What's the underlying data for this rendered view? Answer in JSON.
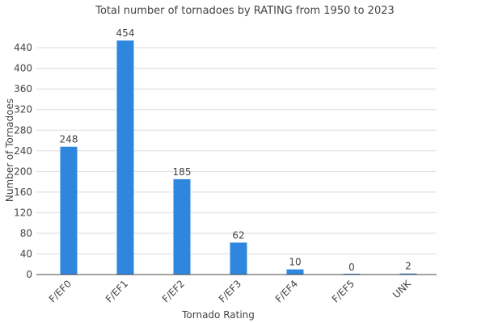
{
  "chart_data": {
    "type": "bar",
    "title": "Total number of tornadoes by RATING from 1950 to 2023",
    "xlabel": "Tornado Rating",
    "ylabel": "Number of Tornadoes",
    "categories": [
      "F/EF0",
      "F/EF1",
      "F/EF2",
      "F/EF3",
      "F/EF4",
      "F/EF5",
      "UNK"
    ],
    "values": [
      248,
      454,
      185,
      62,
      10,
      0,
      2
    ],
    "yticks": [
      0,
      40,
      80,
      120,
      160,
      200,
      240,
      280,
      320,
      360,
      400,
      440
    ],
    "ylim": [
      0,
      470
    ],
    "grid": true,
    "bar_color": "#2e86de",
    "legend": "none"
  }
}
